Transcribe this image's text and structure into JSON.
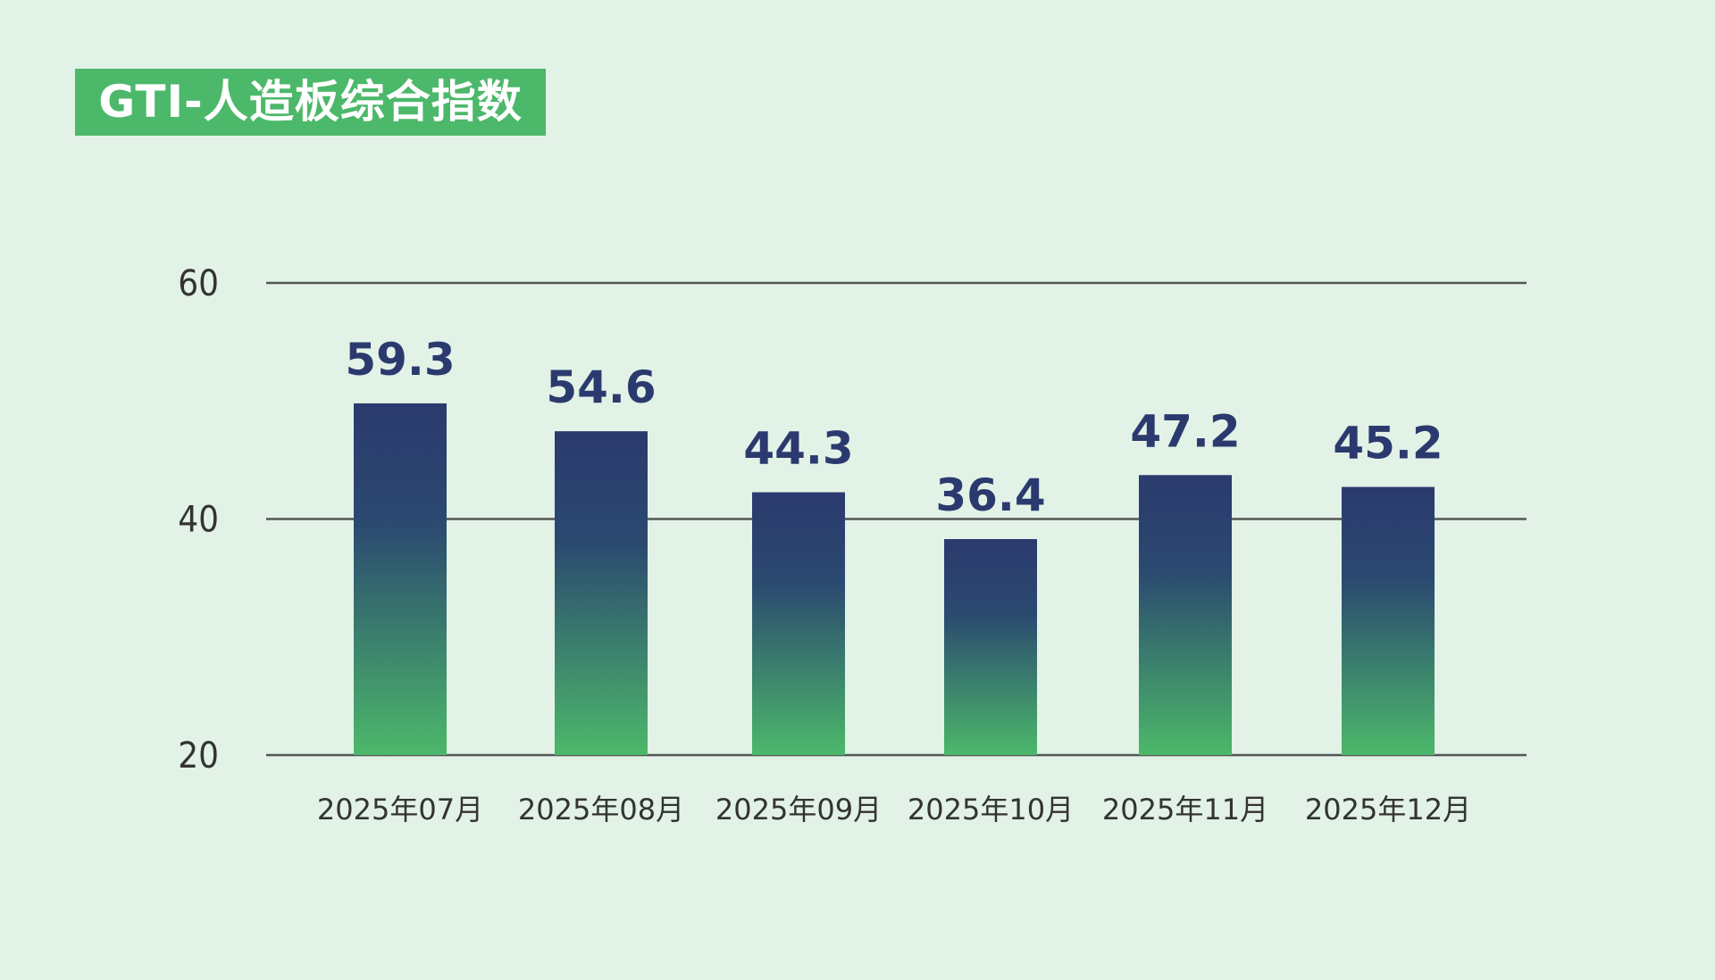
{
  "chart_data": {
    "type": "bar",
    "title": "GTI-人造板综合指数",
    "categories": [
      "2025年07月",
      "2025年08月",
      "2025年09月",
      "2025年10月",
      "2025年11月",
      "2025年12月"
    ],
    "values": [
      59.3,
      54.6,
      44.3,
      36.4,
      47.2,
      45.2
    ],
    "data_labels": [
      "59.3",
      "54.6",
      "44.3",
      "36.4",
      "47.2",
      "45.2"
    ],
    "yticks": [
      "20",
      "40",
      "60"
    ],
    "ylim": [
      20,
      60
    ],
    "grid": true,
    "legend": "none",
    "colors": {
      "bar_top": "#2b3a6e",
      "bar_bottom": "#4cb86a",
      "title_bg": "#4cb86a",
      "label": "#2b3a6e",
      "background": "#e2f2e6"
    }
  }
}
